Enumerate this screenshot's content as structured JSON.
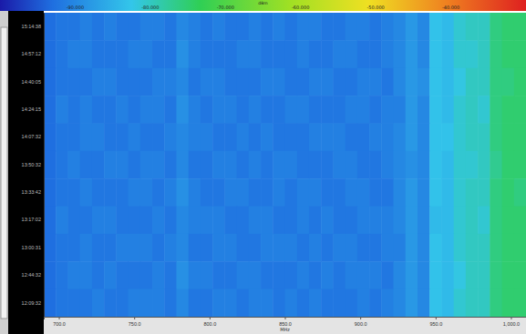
{
  "chart_data": {
    "type": "heatmap",
    "x_label": "MHz",
    "x": [
      694,
      702,
      710,
      718,
      726,
      734,
      742,
      750,
      758,
      766,
      774,
      782,
      790,
      798,
      806,
      814,
      822,
      830,
      838,
      846,
      854,
      862,
      870,
      878,
      886,
      894,
      902,
      910,
      918,
      926,
      934,
      942,
      950,
      958,
      966,
      974,
      982,
      990,
      998,
      1006
    ],
    "xlim": [
      690,
      1010
    ],
    "xticks": [
      {
        "value": 700,
        "label": "700.0"
      },
      {
        "value": 750,
        "label": "750.0"
      },
      {
        "value": 800,
        "label": "800.0"
      },
      {
        "value": 850,
        "label": "850.0"
      },
      {
        "value": 900,
        "label": "900.0"
      },
      {
        "value": 950,
        "label": "950.0"
      },
      {
        "value": 1000,
        "label": "1,000.0"
      }
    ],
    "categories": [
      "15:14:38",
      "14:57:12",
      "14:40:05",
      "14:24:15",
      "14:07:32",
      "13:50:32",
      "13:33:42",
      "13:17:02",
      "13:00:31",
      "12:44:32",
      "12:09:32"
    ],
    "cells": [
      [
        -93,
        -92,
        -92,
        -91,
        -92,
        -91,
        -92,
        -92,
        -91,
        -91,
        -92,
        -90,
        -91,
        -92,
        -91,
        -92,
        -92,
        -91,
        -92,
        -91,
        -92,
        -91,
        -91,
        -92,
        -92,
        -91,
        -91,
        -92,
        -91,
        -90,
        -88,
        -90,
        -83,
        -84,
        -81,
        -80,
        -80,
        -76,
        -75,
        -75
      ],
      [
        -93,
        -92,
        -91,
        -91,
        -92,
        -92,
        -92,
        -91,
        -91,
        -92,
        -92,
        -89,
        -91,
        -92,
        -92,
        -92,
        -91,
        -91,
        -92,
        -92,
        -92,
        -91,
        -92,
        -92,
        -91,
        -91,
        -92,
        -92,
        -91,
        -90,
        -88,
        -90,
        -83,
        -84,
        -81,
        -81,
        -80,
        -76,
        -75,
        -75
      ],
      [
        -93,
        -92,
        -92,
        -92,
        -91,
        -91,
        -92,
        -92,
        -92,
        -91,
        -91,
        -90,
        -92,
        -91,
        -91,
        -92,
        -92,
        -92,
        -91,
        -91,
        -92,
        -92,
        -91,
        -91,
        -92,
        -92,
        -91,
        -91,
        -92,
        -90,
        -88,
        -89,
        -83,
        -84,
        -82,
        -80,
        -80,
        -76,
        -76,
        -75
      ],
      [
        -93,
        -91,
        -92,
        -91,
        -92,
        -92,
        -91,
        -92,
        -91,
        -91,
        -92,
        -89,
        -91,
        -92,
        -91,
        -91,
        -92,
        -91,
        -92,
        -92,
        -91,
        -91,
        -92,
        -92,
        -92,
        -91,
        -91,
        -92,
        -91,
        -91,
        -88,
        -90,
        -83,
        -84,
        -81,
        -80,
        -81,
        -76,
        -75,
        -75
      ],
      [
        -93,
        -92,
        -92,
        -91,
        -91,
        -92,
        -92,
        -91,
        -92,
        -92,
        -91,
        -90,
        -91,
        -91,
        -92,
        -92,
        -91,
        -92,
        -91,
        -92,
        -92,
        -92,
        -91,
        -91,
        -91,
        -92,
        -92,
        -91,
        -91,
        -90,
        -88,
        -90,
        -83,
        -83,
        -81,
        -80,
        -80,
        -76,
        -75,
        -75
      ],
      [
        -93,
        -92,
        -91,
        -92,
        -92,
        -91,
        -91,
        -92,
        -91,
        -91,
        -92,
        -90,
        -92,
        -92,
        -91,
        -91,
        -92,
        -91,
        -92,
        -91,
        -91,
        -92,
        -92,
        -92,
        -91,
        -91,
        -92,
        -92,
        -91,
        -90,
        -89,
        -90,
        -83,
        -84,
        -81,
        -81,
        -80,
        -77,
        -75,
        -75
      ],
      [
        -93,
        -92,
        -92,
        -91,
        -92,
        -92,
        -92,
        -91,
        -91,
        -92,
        -91,
        -89,
        -91,
        -92,
        -92,
        -91,
        -91,
        -92,
        -92,
        -91,
        -92,
        -91,
        -91,
        -92,
        -92,
        -91,
        -91,
        -92,
        -92,
        -90,
        -88,
        -90,
        -83,
        -84,
        -81,
        -80,
        -80,
        -76,
        -75,
        -76
      ],
      [
        -93,
        -91,
        -92,
        -92,
        -91,
        -91,
        -92,
        -92,
        -92,
        -91,
        -92,
        -90,
        -91,
        -91,
        -91,
        -92,
        -92,
        -91,
        -91,
        -92,
        -92,
        -91,
        -92,
        -91,
        -92,
        -92,
        -91,
        -91,
        -91,
        -90,
        -88,
        -90,
        -84,
        -84,
        -81,
        -80,
        -81,
        -76,
        -75,
        -75
      ],
      [
        -93,
        -92,
        -92,
        -91,
        -92,
        -92,
        -91,
        -91,
        -91,
        -92,
        -91,
        -90,
        -92,
        -92,
        -91,
        -91,
        -92,
        -92,
        -91,
        -91,
        -91,
        -92,
        -91,
        -92,
        -91,
        -91,
        -92,
        -92,
        -91,
        -91,
        -88,
        -90,
        -83,
        -84,
        -81,
        -80,
        -80,
        -76,
        -75,
        -75
      ],
      [
        -93,
        -92,
        -91,
        -91,
        -92,
        -91,
        -92,
        -92,
        -92,
        -91,
        -92,
        -89,
        -91,
        -91,
        -92,
        -92,
        -91,
        -91,
        -92,
        -92,
        -92,
        -91,
        -92,
        -91,
        -92,
        -91,
        -91,
        -91,
        -92,
        -90,
        -88,
        -90,
        -83,
        -84,
        -82,
        -80,
        -80,
        -76,
        -75,
        -75
      ],
      [
        -93,
        -92,
        -92,
        -92,
        -91,
        -92,
        -92,
        -91,
        -91,
        -91,
        -92,
        -90,
        -92,
        -92,
        -91,
        -91,
        -92,
        -91,
        -91,
        -92,
        -91,
        -92,
        -91,
        -92,
        -92,
        -92,
        -91,
        -92,
        -91,
        -90,
        -88,
        -90,
        -83,
        -84,
        -81,
        -80,
        -80,
        -76,
        -75,
        -75
      ]
    ],
    "colorbar": {
      "title": "dBm",
      "range": [
        -100,
        -30
      ],
      "ticks": [
        {
          "value": -90,
          "label": "-90.000"
        },
        {
          "value": -80,
          "label": "-80.000"
        },
        {
          "value": -70,
          "label": "-70.000"
        },
        {
          "value": -60,
          "label": "-60.000"
        },
        {
          "value": -50,
          "label": "-50.000"
        },
        {
          "value": -40,
          "label": "-40.000"
        }
      ]
    }
  }
}
